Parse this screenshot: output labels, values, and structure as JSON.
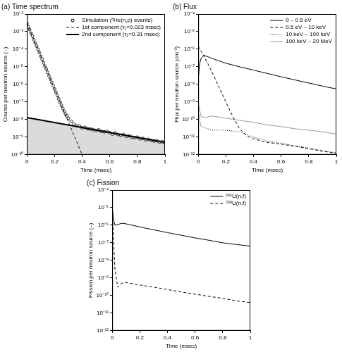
{
  "chart_data": [
    {
      "type": "line",
      "title": "(a) Time spectrum",
      "x_label": "Time (msec)",
      "y_label": "Counts per neutron source (–)",
      "log": "y",
      "grid": false,
      "legend": "upper right",
      "xlim": [
        0,
        1
      ],
      "xticks": [
        0,
        0.2,
        0.4,
        0.6,
        0.8,
        1
      ],
      "ylim": [
        1e-10,
        0.01
      ],
      "yticks": [
        {
          "value": 1e-10,
          "label": "10⁻¹⁰"
        },
        {
          "value": 1e-09,
          "label": "10⁻⁹"
        },
        {
          "value": 1e-08,
          "label": "10⁻⁸"
        },
        {
          "value": 1e-07,
          "label": "10⁻⁷"
        },
        {
          "value": 1e-06,
          "label": "10⁻⁶"
        },
        {
          "value": 1e-05,
          "label": "10⁻⁵"
        },
        {
          "value": 0.0001,
          "label": "10⁻⁴"
        },
        {
          "value": 0.001,
          "label": "10⁻³"
        },
        {
          "value": 0.01,
          "label": "10⁻²"
        }
      ],
      "series": [
        {
          "name": "Simulation (³He(n,p) events)",
          "type": "scatter",
          "marker": "circle",
          "color": "#000000",
          "x": [
            0,
            0.01,
            0.02,
            0.03,
            0.04,
            0.05,
            0.06,
            0.07,
            0.08,
            0.09,
            0.1,
            0.11,
            0.12,
            0.13,
            0.14,
            0.15,
            0.16,
            0.17,
            0.18,
            0.19,
            0.2,
            0.21,
            0.22,
            0.23,
            0.24,
            0.25,
            0.26,
            0.27,
            0.28,
            0.29,
            0.3,
            0.32,
            0.34,
            0.36,
            0.38,
            0.4,
            0.42,
            0.44,
            0.46,
            0.48,
            0.5,
            0.52,
            0.54,
            0.56,
            0.58,
            0.6,
            0.62,
            0.64,
            0.66,
            0.68,
            0.7,
            0.72,
            0.74,
            0.76,
            0.78,
            0.8,
            0.82,
            0.84,
            0.86,
            0.88,
            0.9,
            0.92,
            0.94,
            0.96,
            0.98,
            1
          ],
          "values": [
            0.003,
            0.0019,
            0.0013,
            0.0008,
            0.00055,
            0.00035,
            0.00023,
            0.00015,
            0.0001,
            6.5e-05,
            4e-05,
            2.7e-05,
            1.7e-05,
            1.1e-05,
            7.5e-06,
            4.8e-06,
            3.1e-06,
            2e-06,
            1.3e-06,
            8.5e-07,
            5.5e-07,
            3.6e-07,
            2.3e-07,
            1.5e-07,
            1e-07,
            6.5e-08,
            4.3e-08,
            3e-08,
            2e-08,
            1.6e-08,
            1.2e-08,
            8e-09,
            5.5e-09,
            4.5e-09,
            4.3e-09,
            3.4e-09,
            3.6e-09,
            3e-09,
            2.9e-09,
            2.7e-09,
            2.4e-09,
            2.6e-09,
            2.1e-09,
            2e-09,
            2.1e-09,
            1.8e-09,
            1.5e-09,
            1.7e-09,
            1.4e-09,
            1.3e-09,
            1.4e-09,
            1.1e-09,
            1.2e-09,
            1e-09,
            9.5e-10,
            1e-09,
            8e-10,
            8.5e-10,
            7e-10,
            7.5e-10,
            6.5e-10,
            6e-10,
            6.2e-10,
            5.2e-10,
            5.5e-10,
            4.8e-10
          ]
        },
        {
          "name": "1st component (τ₁=0.023 msec)",
          "line_style": "dashed",
          "color": "#000000",
          "x": [
            0,
            0.4
          ],
          "values": [
            0.003,
            1e-10
          ]
        },
        {
          "name": "2nd component (τ₂=0.31 msec)",
          "line_style": "thick",
          "color": "#000000",
          "x": [
            0,
            1
          ],
          "values": [
            1.3e-08,
            5e-10
          ]
        }
      ]
    },
    {
      "type": "line",
      "title": "(b) Flux",
      "x_label": "Time (msec)",
      "y_label": "Flux per neutron source (cm⁻²)",
      "log": "y",
      "grid": false,
      "legend": "upper right",
      "xlim": [
        0,
        1
      ],
      "xticks": [
        0,
        0.2,
        0.4,
        0.6,
        0.8,
        1
      ],
      "ylim": [
        1e-12,
        0.0001
      ],
      "yticks": [
        {
          "value": 1e-12,
          "label": "10⁻¹²"
        },
        {
          "value": 1e-11,
          "label": "10⁻¹¹"
        },
        {
          "value": 1e-10,
          "label": "10⁻¹⁰"
        },
        {
          "value": 1e-09,
          "label": "10⁻⁹"
        },
        {
          "value": 1e-08,
          "label": "10⁻⁸"
        },
        {
          "value": 1e-07,
          "label": "10⁻⁷"
        },
        {
          "value": 1e-06,
          "label": "10⁻⁶"
        },
        {
          "value": 1e-05,
          "label": "10⁻⁵"
        },
        {
          "value": 0.0001,
          "label": "10⁻⁴"
        }
      ],
      "series": [
        {
          "name": "0 – 0.5 eV",
          "line_style": "solid",
          "color": "#000000",
          "x": [
            0,
            0.01,
            0.02,
            0.04,
            0.06,
            0.1,
            0.2,
            0.3,
            0.4,
            0.5,
            0.6,
            0.7,
            0.8,
            0.9,
            1
          ],
          "values": [
            2e-08,
            1.5e-07,
            3e-07,
            4.5e-07,
            4e-07,
            3e-07,
            1.6e-07,
            1e-07,
            6.5e-08,
            4.2e-08,
            2.7e-08,
            1.8e-08,
            1.2e-08,
            8e-09,
            5.5e-09
          ]
        },
        {
          "name": "0.5 eV – 10 keV",
          "line_style": "dashed",
          "color": "#000000",
          "x": [
            0,
            0.02,
            0.05,
            0.1,
            0.15,
            0.2,
            0.25,
            0.3,
            0.35,
            0.4,
            0.5,
            0.6,
            0.7,
            0.8,
            0.9,
            1
          ],
          "values": [
            1.5e-06,
            8e-07,
            3e-07,
            5e-08,
            7e-09,
            1e-09,
            1.5e-10,
            3e-11,
            1.2e-11,
            8e-12,
            5e-12,
            4e-12,
            3e-12,
            2.2e-12,
            1.6e-12,
            1.2e-12
          ]
        },
        {
          "name": "10 keV – 100 keV",
          "line_style": "dotted",
          "color": "#000000",
          "x": [
            0,
            0.02,
            0.1,
            0.2,
            0.3,
            0.4,
            0.5,
            0.6,
            0.7,
            0.8,
            0.9,
            1
          ],
          "values": [
            3e-10,
            4e-11,
            2.5e-11,
            2.5e-11,
            2e-11,
            1e-11,
            6e-12,
            4.5e-12,
            3.2e-12,
            2.4e-12,
            1.7e-12,
            1.3e-12
          ]
        },
        {
          "name": "100 keV – 20 MeV",
          "line_style": "solid",
          "color": "#999999",
          "x": [
            0,
            0.02,
            0.05,
            0.1,
            0.2,
            0.3,
            0.4,
            0.5,
            0.6,
            0.7,
            0.8,
            0.9,
            1
          ],
          "values": [
            8e-10,
            1.5e-10,
            1.3e-10,
            1.6e-10,
            1.2e-10,
            9e-11,
            7e-11,
            5e-11,
            4e-11,
            3e-11,
            2.5e-11,
            2e-11,
            1.5e-11
          ]
        }
      ]
    },
    {
      "type": "line",
      "title": "(c) Fission",
      "x_label": "Time (msec)",
      "y_label": "Fission per neutron source (–)",
      "log": "y",
      "grid": false,
      "legend": "upper right",
      "xlim": [
        0,
        1
      ],
      "xticks": [
        0,
        0.2,
        0.4,
        0.6,
        0.8,
        1
      ],
      "ylim": [
        1e-12,
        0.0001
      ],
      "yticks": [
        {
          "value": 1e-12,
          "label": "10⁻¹²"
        },
        {
          "value": 1e-11,
          "label": "10⁻¹¹"
        },
        {
          "value": 1e-10,
          "label": "10⁻¹⁰"
        },
        {
          "value": 1e-09,
          "label": "10⁻⁹"
        },
        {
          "value": 1e-08,
          "label": "10⁻⁸"
        },
        {
          "value": 1e-07,
          "label": "10⁻⁷"
        },
        {
          "value": 1e-06,
          "label": "10⁻⁶"
        },
        {
          "value": 1e-05,
          "label": "10⁻⁵"
        },
        {
          "value": 0.0001,
          "label": "10⁻⁴"
        }
      ],
      "series": [
        {
          "name": "²³⁵U(n,f)",
          "line_style": "solid",
          "color": "#000000",
          "x": [
            0,
            0.01,
            0.02,
            0.04,
            0.07,
            0.1,
            0.2,
            0.3,
            0.4,
            0.5,
            0.6,
            0.7,
            0.8,
            0.9,
            1
          ],
          "values": [
            1e-05,
            2e-06,
            1e-06,
            1.1e-06,
            1.3e-06,
            1.2e-06,
            8e-07,
            5.5e-07,
            3.8e-07,
            2.7e-07,
            1.9e-07,
            1.4e-07,
            1e-07,
            8e-08,
            6.5e-08
          ]
        },
        {
          "name": "²³⁸U(n,f)",
          "line_style": "dashed",
          "color": "#000000",
          "x": [
            0,
            0.01,
            0.02,
            0.04,
            0.07,
            0.1,
            0.2,
            0.3,
            0.4,
            0.5,
            0.6,
            0.7,
            0.8,
            0.9,
            1
          ],
          "values": [
            1e-05,
            1e-07,
            3e-09,
            3e-10,
            5e-10,
            5.5e-10,
            4e-10,
            3e-10,
            2.2e-10,
            1.6e-10,
            1.2e-10,
            9e-11,
            7e-11,
            5e-11,
            4e-11
          ]
        }
      ]
    }
  ]
}
